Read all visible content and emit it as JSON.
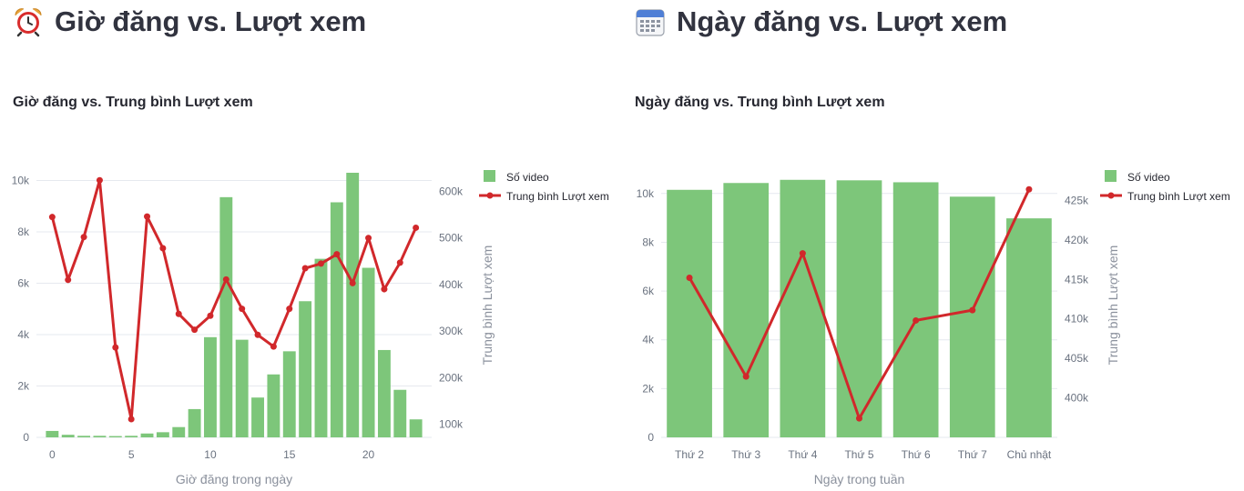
{
  "colors": {
    "bar": "#7dc67a",
    "line": "#d1282b",
    "grid": "#e6e9ef",
    "text": "#31333f"
  },
  "left": {
    "header_icon": "alarm-clock-icon",
    "header": "Giờ đăng vs. Lượt xem",
    "chart_title": "Giờ đăng vs. Trung bình Lượt xem"
  },
  "right": {
    "header_icon": "calendar-icon",
    "header": "Ngày đăng vs. Lượt xem",
    "chart_title": "Ngày đăng vs. Trung bình Lượt xem"
  },
  "chart_data": [
    {
      "type": "bar",
      "title": "Giờ đăng vs. Trung bình Lượt xem",
      "xlabel": "Giờ đăng trong ngày",
      "ylabel": "",
      "y2label": "Trung bình Lượt xem",
      "x": [
        0,
        1,
        2,
        3,
        4,
        5,
        6,
        7,
        8,
        9,
        10,
        11,
        12,
        13,
        14,
        15,
        16,
        17,
        18,
        19,
        20,
        21,
        22,
        23
      ],
      "x_ticks": [
        0,
        5,
        10,
        15,
        20
      ],
      "x_range": [
        -1,
        24
      ],
      "ylim": [
        0,
        10300
      ],
      "y_ticks": [
        0,
        2000,
        4000,
        6000,
        8000,
        10000
      ],
      "y_tick_labels": [
        "0",
        "2k",
        "4k",
        "6k",
        "8k",
        "10k"
      ],
      "y2lim": [
        72000,
        640000
      ],
      "y2_ticks": [
        100000,
        200000,
        300000,
        400000,
        500000,
        600000
      ],
      "y2_tick_labels": [
        "100k",
        "200k",
        "300k",
        "400k",
        "500k",
        "600k"
      ],
      "legend_position": "top-right",
      "series": [
        {
          "name": "Số video",
          "type": "bar",
          "axis": "y",
          "values": [
            250,
            100,
            60,
            60,
            50,
            60,
            150,
            200,
            400,
            1100,
            3900,
            9350,
            3800,
            1550,
            2450,
            3350,
            5300,
            6950,
            9150,
            10300,
            6600,
            3400,
            1850,
            700
          ]
        },
        {
          "name": "Trung bình Lượt xem",
          "type": "line",
          "axis": "y2",
          "values": [
            545000,
            410000,
            502000,
            624000,
            265000,
            111000,
            546000,
            478000,
            337000,
            303000,
            333000,
            411000,
            348000,
            292000,
            267000,
            348000,
            435000,
            445000,
            465000,
            403000,
            500000,
            390000,
            447000,
            522000
          ]
        }
      ]
    },
    {
      "type": "bar",
      "title": "Ngày đăng vs. Trung bình Lượt xem",
      "xlabel": "Ngày trong tuần",
      "ylabel": "",
      "y2label": "Trung bình Lượt xem",
      "categories": [
        "Thứ 2",
        "Thứ 3",
        "Thứ 4",
        "Thứ 5",
        "Thứ 6",
        "Thứ 7",
        "Chủ nhật"
      ],
      "ylim": [
        0,
        10850
      ],
      "y_ticks": [
        0,
        2000,
        4000,
        6000,
        8000,
        10000
      ],
      "y_tick_labels": [
        "0",
        "2k",
        "4k",
        "6k",
        "8k",
        "10k"
      ],
      "y2lim": [
        395000,
        428500
      ],
      "y2_ticks": [
        400000,
        405000,
        410000,
        415000,
        420000,
        425000
      ],
      "y2_tick_labels": [
        "400k",
        "405k",
        "410k",
        "415k",
        "420k",
        "425k"
      ],
      "legend_position": "top-right",
      "series": [
        {
          "name": "Số video",
          "type": "bar",
          "axis": "y",
          "values": [
            10150,
            10430,
            10560,
            10540,
            10460,
            9870,
            8980
          ]
        },
        {
          "name": "Trung bình Lượt xem",
          "type": "line",
          "axis": "y2",
          "values": [
            415200,
            402700,
            418300,
            397400,
            409800,
            411100,
            426400
          ]
        }
      ]
    }
  ]
}
